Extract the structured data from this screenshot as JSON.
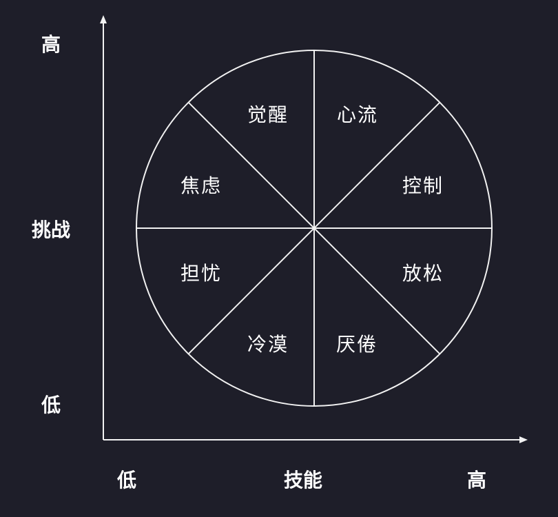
{
  "axes": {
    "y_label": "挑战",
    "y_high": "高",
    "y_low": "低",
    "x_label": "技能",
    "x_low": "低",
    "x_high": "高"
  },
  "sectors": [
    {
      "label": "心流"
    },
    {
      "label": "控制"
    },
    {
      "label": "放松"
    },
    {
      "label": "厌倦"
    },
    {
      "label": "冷漠"
    },
    {
      "label": "担忧"
    },
    {
      "label": "焦虑"
    },
    {
      "label": "觉醒"
    }
  ],
  "colors": {
    "background": "#1e1e29",
    "line": "#f2f2f2",
    "text": "#ffffff"
  }
}
